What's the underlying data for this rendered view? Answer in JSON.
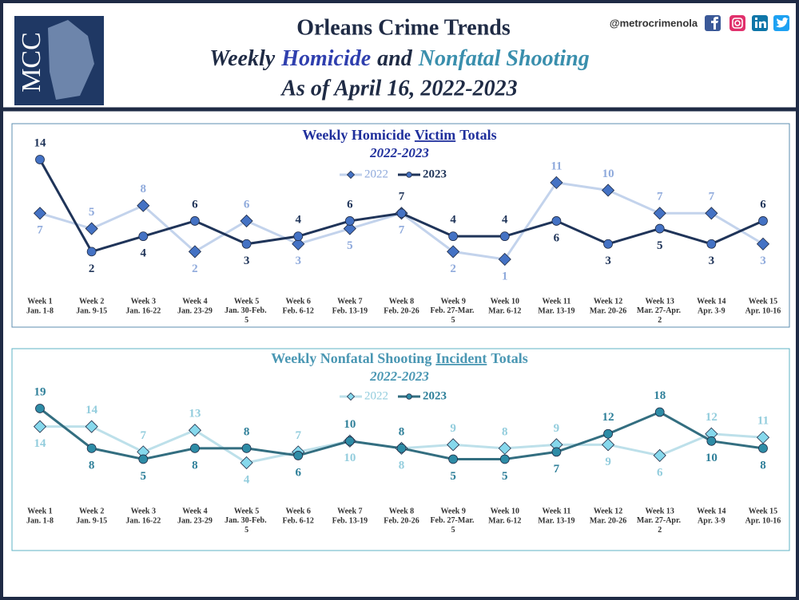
{
  "header": {
    "logo": "MCC",
    "title": "Orleans Crime Trends",
    "subtitle_parts": [
      "Weekly",
      "Homicide",
      "and",
      "Nonfatal Shooting"
    ],
    "date_line": "As of April 16, 2022-2023",
    "handle": "@metrocrimenola"
  },
  "chart_data": [
    {
      "type": "line",
      "title_parts": [
        "Weekly Homicide",
        "Victim",
        "Totals"
      ],
      "subtitle": "2022-2023",
      "title_color": "#1f2f9c",
      "categories": [
        "Week 1",
        "Week 2",
        "Week 3",
        "Week 4",
        "Week 5",
        "Week 6",
        "Week 7",
        "Week 8",
        "Week 9",
        "Week 10",
        "Week 11",
        "Week 12",
        "Week 13",
        "Week 14",
        "Week 15"
      ],
      "category_dates": [
        "Jan. 1-8",
        "Jan. 9-15",
        "Jan. 16-22",
        "Jan. 23-29",
        "Jan. 30-Feb. 5",
        "Feb. 6-12",
        "Feb. 13-19",
        "Feb. 20-26",
        "Feb. 27-Mar. 5",
        "Mar. 6-12",
        "Mar. 13-19",
        "Mar. 20-26",
        "Mar. 27-Apr. 2",
        "Apr. 3-9",
        "Apr. 10-16"
      ],
      "series": [
        {
          "name": "2022",
          "color": "#c3d3ec",
          "marker": "diamond",
          "marker_color": "#4472c4",
          "label_color": "#8faadc",
          "values": [
            7,
            5,
            8,
            2,
            6,
            3,
            5,
            7,
            2,
            1,
            11,
            10,
            7,
            7,
            3
          ]
        },
        {
          "name": "2023",
          "color": "#1f3459",
          "marker": "circle",
          "marker_color": "#4472c4",
          "label_color": "#1f3459",
          "values": [
            14,
            2,
            4,
            6,
            3,
            4,
            6,
            7,
            4,
            4,
            6,
            3,
            5,
            3,
            6
          ]
        }
      ]
    },
    {
      "type": "line",
      "title_parts": [
        "Weekly Nonfatal Shooting",
        "Incident",
        "Totals"
      ],
      "subtitle": "2022-2023",
      "title_color": "#4a97b3",
      "categories": [
        "Week 1",
        "Week 2",
        "Week 3",
        "Week 4",
        "Week 5",
        "Week 6",
        "Week 7",
        "Week 8",
        "Week 9",
        "Week 10",
        "Week 11",
        "Week 12",
        "Week 13",
        "Week 14",
        "Week 15"
      ],
      "category_dates": [
        "Jan. 1-8",
        "Jan. 9-15",
        "Jan. 16-22",
        "Jan. 23-29",
        "Jan. 30-Feb. 5",
        "Feb. 6-12",
        "Feb. 13-19",
        "Feb. 20-26",
        "Feb. 27-Mar. 5",
        "Mar. 6-12",
        "Mar. 13-19",
        "Mar. 20-26",
        "Mar. 27-Apr. 2",
        "Apr. 3-9",
        "Apr. 10-16"
      ],
      "series": [
        {
          "name": "2022",
          "color": "#bde0ea",
          "marker": "diamond",
          "marker_color": "#86d8ec",
          "label_color": "#93cddd",
          "values": [
            14,
            14,
            7,
            13,
            4,
            7,
            10,
            8,
            9,
            8,
            9,
            9,
            6,
            12,
            11
          ]
        },
        {
          "name": "2023",
          "color": "#336e80",
          "marker": "circle",
          "marker_color": "#2e8ca6",
          "label_color": "#2e7f99",
          "values": [
            19,
            8,
            5,
            8,
            8,
            6,
            10,
            8,
            5,
            5,
            7,
            12,
            18,
            10,
            8
          ]
        }
      ]
    }
  ]
}
